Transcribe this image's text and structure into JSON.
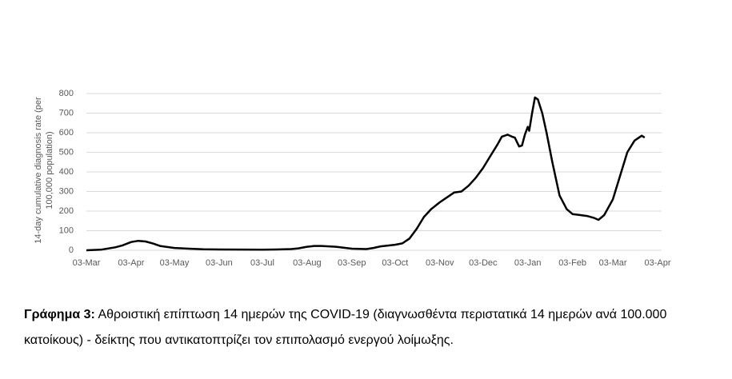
{
  "chart_data": {
    "type": "line",
    "ylabel": [
      "14-day cumulative diagnosis rate (per",
      "100,000 population)"
    ],
    "x": [
      "03-Mar",
      "13-Mar",
      "23-Mar",
      "28-Mar",
      "03-Apr",
      "08-Apr",
      "13-Apr",
      "18-Apr",
      "23-Apr",
      "03-May",
      "13-May",
      "23-May",
      "03-Jun",
      "03-Jul",
      "13-Jul",
      "23-Jul",
      "28-Jul",
      "03-Aug",
      "08-Aug",
      "13-Aug",
      "23-Aug",
      "03-Sep",
      "13-Sep",
      "18-Sep",
      "23-Sep",
      "03-Oct",
      "08-Oct",
      "13-Oct",
      "18-Oct",
      "23-Oct",
      "28-Oct",
      "03-Nov",
      "08-Nov",
      "13-Nov",
      "18-Nov",
      "23-Nov",
      "28-Nov",
      "03-Dec",
      "08-Dec",
      "13-Dec",
      "16-Dec",
      "20-Dec",
      "23-Dec",
      "25-Dec",
      "28-Dec",
      "30-Dec",
      "01-Jan",
      "03-Jan",
      "04-Jan",
      "06-Jan",
      "08-Jan",
      "10-Jan",
      "13-Jan",
      "16-Jan",
      "20-Jan",
      "25-Jan",
      "30-Jan",
      "03-Feb",
      "08-Feb",
      "13-Feb",
      "18-Feb",
      "21-Feb",
      "25-Feb",
      "03-Mar",
      "08-Mar",
      "13-Mar",
      "18-Mar",
      "23-Mar",
      "25-Mar"
    ],
    "series": [
      {
        "color": "#000000",
        "values": [
          0,
          3,
          15,
          25,
          42,
          48,
          45,
          35,
          22,
          12,
          8,
          5,
          4,
          3,
          4,
          6,
          10,
          18,
          22,
          22,
          18,
          8,
          6,
          12,
          20,
          28,
          35,
          60,
          110,
          170,
          210,
          245,
          270,
          295,
          300,
          330,
          370,
          420,
          480,
          540,
          580,
          590,
          580,
          575,
          530,
          535,
          590,
          630,
          610,
          700,
          780,
          770,
          700,
          600,
          450,
          280,
          210,
          185,
          180,
          175,
          165,
          155,
          180,
          260,
          380,
          500,
          560,
          585,
          575
        ]
      }
    ],
    "xticks": [
      "03-Mar",
      "03-Apr",
      "03-May",
      "03-Jun",
      "03-Jul",
      "03-Aug",
      "03-Sep",
      "03-Oct",
      "03-Nov",
      "03-Dec",
      "03-Jan",
      "03-Feb",
      "03-Mar",
      "03-Apr"
    ],
    "ylim": [
      0,
      800
    ],
    "yticks": [
      0,
      100,
      200,
      300,
      400,
      500,
      600,
      700,
      800
    ],
    "grid": true
  },
  "caption": {
    "label": "Γράφημα 3:",
    "text": "Αθροιστική επίπτωση 14 ημερών της COVID-19 (διαγνωσθέντα περιστατικά 14 ημερών ανά 100.000 κατοίκους) - δείκτης που αντικατοπτρίζει τον επιπολασμό ενεργού λοίμωξης."
  }
}
